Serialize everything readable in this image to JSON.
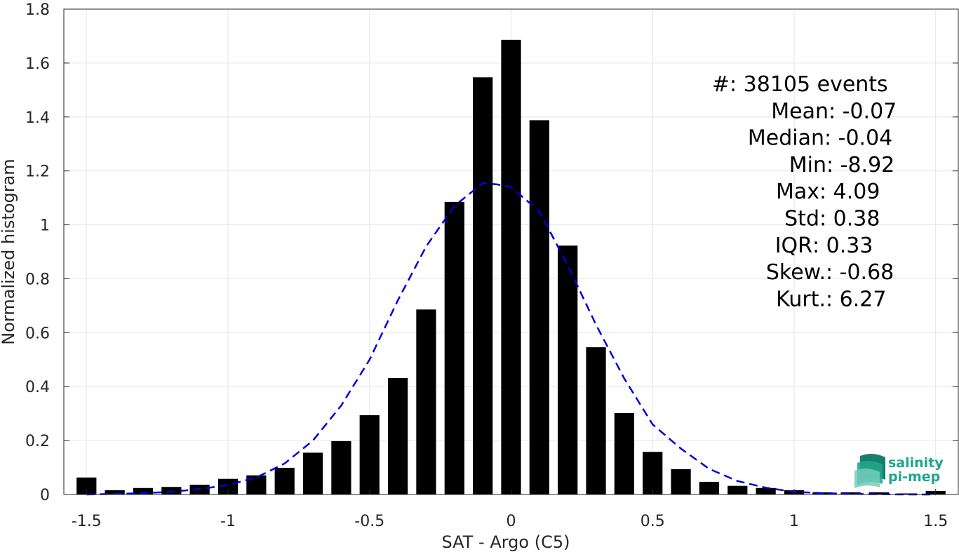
{
  "chart_data": {
    "type": "bar",
    "xlabel": "SAT - Argo (C5)",
    "ylabel": "Normalized histogram",
    "xlim": [
      -1.58,
      1.58
    ],
    "ylim": [
      0,
      1.8
    ],
    "xticks": [
      -1.5,
      -1,
      -0.5,
      0,
      0.5,
      1,
      1.5
    ],
    "xtick_labels": [
      "-1.5",
      "-1",
      "-0.5",
      "0",
      "0.5",
      "1",
      "1.5"
    ],
    "yticks": [
      0,
      0.2,
      0.4,
      0.6,
      0.8,
      1,
      1.2,
      1.4,
      1.6,
      1.8
    ],
    "ytick_labels": [
      "0",
      "0.2",
      "0.4",
      "0.6",
      "0.8",
      "1",
      "1.2",
      "1.4",
      "1.6",
      "1.8"
    ],
    "grid": true,
    "bar_color": "#000000",
    "bar_width": 0.07,
    "bars": {
      "x": [
        -1.5,
        -1.4,
        -1.3,
        -1.2,
        -1.1,
        -1.0,
        -0.9,
        -0.8,
        -0.7,
        -0.6,
        -0.5,
        -0.4,
        -0.3,
        -0.2,
        -0.1,
        0.0,
        0.1,
        0.2,
        0.3,
        0.4,
        0.5,
        0.6,
        0.7,
        0.8,
        0.9,
        1.0,
        1.1,
        1.2,
        1.3,
        1.4,
        1.5
      ],
      "values": [
        0.063,
        0.016,
        0.024,
        0.028,
        0.036,
        0.058,
        0.071,
        0.099,
        0.155,
        0.198,
        0.294,
        0.432,
        0.686,
        1.085,
        1.547,
        1.686,
        1.388,
        0.923,
        0.546,
        0.302,
        0.158,
        0.094,
        0.047,
        0.032,
        0.024,
        0.016,
        0.008,
        0.008,
        0.008,
        0.004,
        0.013
      ]
    },
    "fit_curve": {
      "color": "#0000dd",
      "style": "dashed",
      "x": [
        -1.5,
        -1.4,
        -1.3,
        -1.2,
        -1.1,
        -1.0,
        -0.9,
        -0.8,
        -0.7,
        -0.6,
        -0.5,
        -0.4,
        -0.3,
        -0.2,
        -0.1,
        -0.05,
        0.0,
        0.1,
        0.2,
        0.3,
        0.4,
        0.5,
        0.6,
        0.7,
        0.8,
        0.9,
        1.0,
        1.1,
        1.2,
        1.3,
        1.4,
        1.5
      ],
      "y": [
        0.0,
        0.002,
        0.005,
        0.01,
        0.02,
        0.035,
        0.063,
        0.115,
        0.2,
        0.33,
        0.5,
        0.72,
        0.92,
        1.07,
        1.155,
        1.15,
        1.14,
        1.05,
        0.85,
        0.63,
        0.43,
        0.26,
        0.17,
        0.095,
        0.05,
        0.025,
        0.01,
        0.005,
        0.002,
        0.001,
        0.0,
        0.0
      ]
    },
    "stats": [
      {
        "label": "#  ",
        "value": ": 38105 events"
      },
      {
        "label": "Mean ",
        "value": ": -0.07"
      },
      {
        "label": "Median ",
        "value": ": -0.04"
      },
      {
        "label": "Min ",
        "value": ": -8.92"
      },
      {
        "label": "Max ",
        "value": ": 4.09"
      },
      {
        "label": "Std ",
        "value": ": 0.38"
      },
      {
        "label": "IQR ",
        "value": ": 0.33"
      },
      {
        "label": "Skew. ",
        "value": ": -0.68"
      },
      {
        "label": "Kurt. ",
        "value": ": 6.27"
      }
    ]
  },
  "logo": {
    "line1": "salinity",
    "line2": "pi-mep"
  }
}
